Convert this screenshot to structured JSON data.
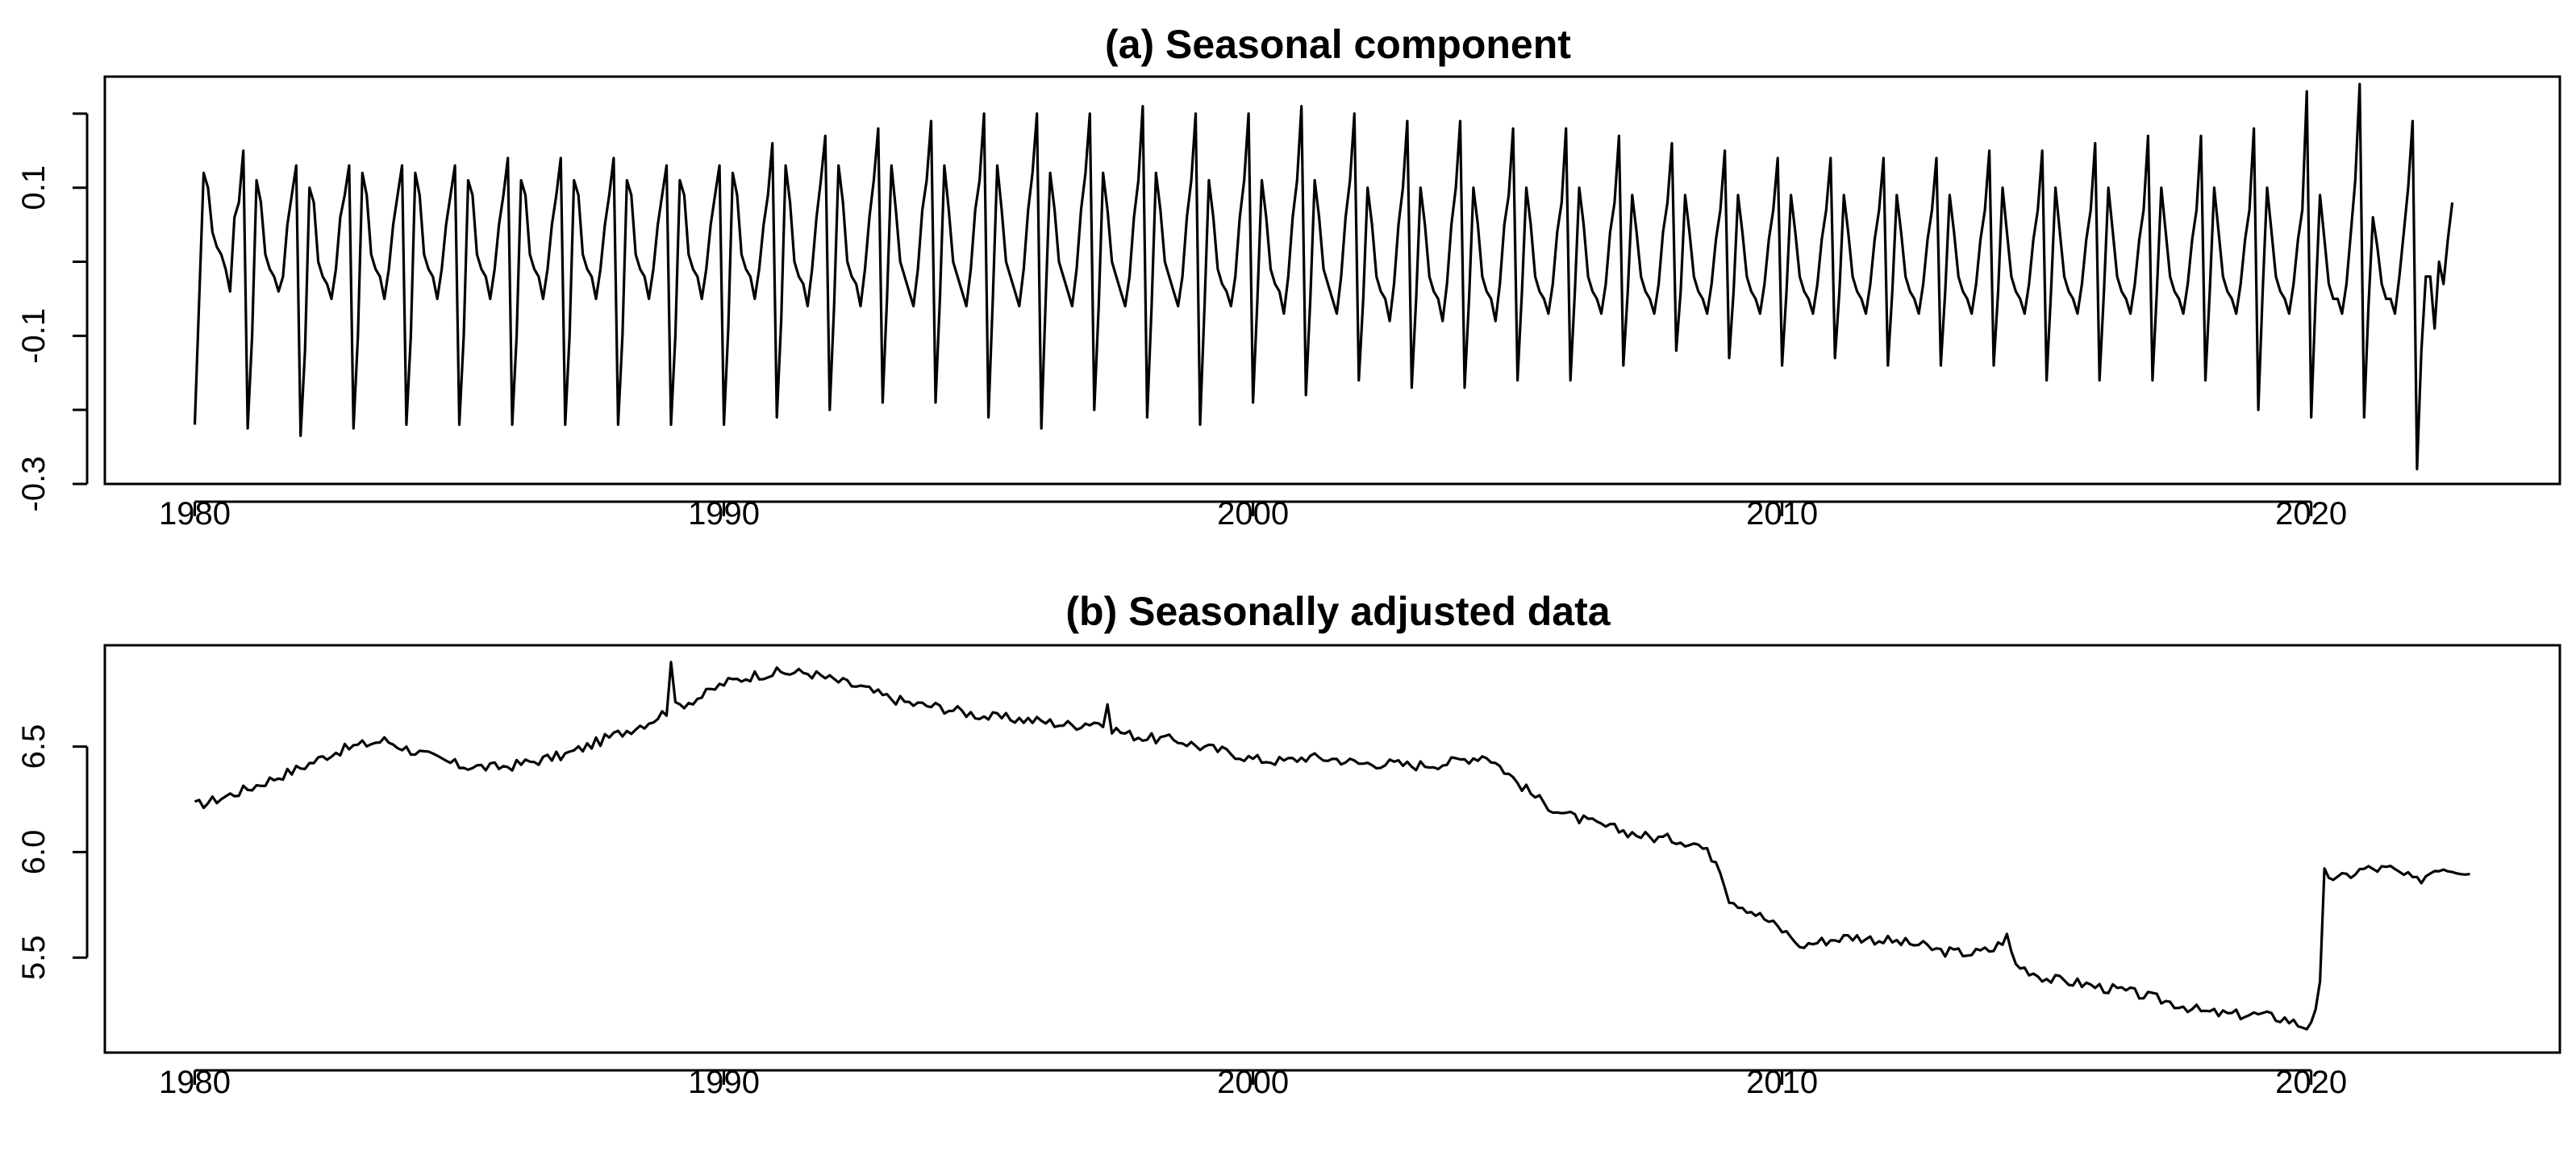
{
  "chart_data": [
    {
      "type": "line",
      "title": "(a) Seasonal component",
      "xlabel": "",
      "ylabel": "",
      "xlim": [
        1978.3,
        2024.7
      ],
      "ylim": [
        -0.3,
        0.25
      ],
      "x_ticks": [
        1980,
        1990,
        2000,
        2010,
        2020
      ],
      "x_tick_labels": [
        "1980",
        "1990",
        "2000",
        "2010",
        "2020"
      ],
      "y_ticks": [
        -0.3,
        -0.1,
        0.1
      ],
      "y_tick_labels": [
        "-0.3",
        "-0.1",
        "0.1"
      ],
      "y_minor_ticks": [
        -0.2,
        0.0,
        0.2
      ],
      "grid": false,
      "frequency": 12,
      "start": 1980,
      "series": [
        {
          "name": "Seasonal component",
          "values": [
            -0.22,
            -0.05,
            0.12,
            0.1,
            0.04,
            0.02,
            0.01,
            -0.01,
            -0.04,
            0.06,
            0.08,
            0.15,
            -0.225,
            -0.1,
            0.11,
            0.08,
            0.01,
            -0.01,
            -0.02,
            -0.04,
            -0.02,
            0.05,
            0.09,
            0.13,
            -0.235,
            -0.12,
            0.1,
            0.08,
            0.0,
            -0.02,
            -0.03,
            -0.05,
            -0.01,
            0.06,
            0.09,
            0.13,
            -0.225,
            -0.1,
            0.12,
            0.09,
            0.01,
            -0.01,
            -0.02,
            -0.05,
            -0.01,
            0.05,
            0.09,
            0.13,
            -0.22,
            -0.1,
            0.12,
            0.09,
            0.01,
            -0.01,
            -0.02,
            -0.05,
            -0.01,
            0.05,
            0.09,
            0.13,
            -0.22,
            -0.1,
            0.11,
            0.09,
            0.01,
            -0.01,
            -0.02,
            -0.05,
            -0.01,
            0.05,
            0.09,
            0.14,
            -0.22,
            -0.1,
            0.11,
            0.09,
            0.01,
            -0.01,
            -0.02,
            -0.05,
            -0.01,
            0.05,
            0.09,
            0.14,
            -0.22,
            -0.1,
            0.11,
            0.09,
            0.01,
            -0.01,
            -0.02,
            -0.05,
            -0.01,
            0.05,
            0.09,
            0.14,
            -0.22,
            -0.1,
            0.11,
            0.09,
            0.01,
            -0.01,
            -0.02,
            -0.05,
            -0.01,
            0.05,
            0.09,
            0.13,
            -0.22,
            -0.1,
            0.11,
            0.09,
            0.01,
            -0.01,
            -0.02,
            -0.05,
            -0.01,
            0.05,
            0.09,
            0.13,
            -0.22,
            -0.09,
            0.12,
            0.09,
            0.01,
            -0.01,
            -0.02,
            -0.05,
            -0.01,
            0.05,
            0.09,
            0.16,
            -0.21,
            -0.08,
            0.13,
            0.08,
            0.0,
            -0.02,
            -0.03,
            -0.06,
            -0.01,
            0.06,
            0.11,
            0.17,
            -0.2,
            -0.06,
            0.13,
            0.08,
            0.0,
            -0.02,
            -0.03,
            -0.06,
            -0.01,
            0.06,
            0.11,
            0.18,
            -0.19,
            -0.05,
            0.13,
            0.07,
            0.0,
            -0.02,
            -0.04,
            -0.06,
            -0.01,
            0.07,
            0.11,
            0.19,
            -0.19,
            -0.05,
            0.13,
            0.07,
            0.0,
            -0.02,
            -0.04,
            -0.06,
            -0.01,
            0.07,
            0.11,
            0.2,
            -0.21,
            -0.05,
            0.13,
            0.07,
            0.0,
            -0.02,
            -0.04,
            -0.06,
            -0.01,
            0.07,
            0.12,
            0.2,
            -0.225,
            -0.05,
            0.12,
            0.07,
            0.0,
            -0.02,
            -0.04,
            -0.06,
            -0.01,
            0.07,
            0.12,
            0.2,
            -0.2,
            -0.06,
            0.12,
            0.07,
            0.0,
            -0.02,
            -0.04,
            -0.06,
            -0.02,
            0.06,
            0.11,
            0.21,
            -0.21,
            -0.06,
            0.12,
            0.07,
            0.0,
            -0.02,
            -0.04,
            -0.06,
            -0.02,
            0.06,
            0.11,
            0.2,
            -0.22,
            -0.06,
            0.11,
            0.06,
            -0.01,
            -0.03,
            -0.04,
            -0.06,
            -0.02,
            0.06,
            0.11,
            0.2,
            -0.19,
            -0.05,
            0.11,
            0.06,
            -0.01,
            -0.03,
            -0.04,
            -0.07,
            -0.02,
            0.06,
            0.11,
            0.21,
            -0.18,
            -0.05,
            0.11,
            0.06,
            -0.01,
            -0.03,
            -0.05,
            -0.07,
            -0.02,
            0.06,
            0.11,
            0.2,
            -0.16,
            -0.05,
            0.1,
            0.05,
            -0.02,
            -0.04,
            -0.05,
            -0.08,
            -0.03,
            0.05,
            0.1,
            0.19,
            -0.17,
            -0.05,
            0.1,
            0.05,
            -0.02,
            -0.04,
            -0.05,
            -0.08,
            -0.03,
            0.05,
            0.1,
            0.19,
            -0.17,
            -0.05,
            0.1,
            0.05,
            -0.02,
            -0.04,
            -0.05,
            -0.08,
            -0.03,
            0.05,
            0.09,
            0.18,
            -0.16,
            -0.04,
            0.1,
            0.05,
            -0.02,
            -0.04,
            -0.05,
            -0.07,
            -0.03,
            0.04,
            0.08,
            0.18,
            -0.16,
            -0.04,
            0.1,
            0.05,
            -0.02,
            -0.04,
            -0.05,
            -0.07,
            -0.03,
            0.04,
            0.08,
            0.17,
            -0.14,
            -0.04,
            0.09,
            0.04,
            -0.02,
            -0.04,
            -0.05,
            -0.07,
            -0.03,
            0.04,
            0.08,
            0.16,
            -0.12,
            -0.04,
            0.09,
            0.04,
            -0.02,
            -0.04,
            -0.05,
            -0.07,
            -0.03,
            0.03,
            0.07,
            0.15,
            -0.13,
            -0.04,
            0.09,
            0.04,
            -0.02,
            -0.04,
            -0.05,
            -0.07,
            -0.03,
            0.03,
            0.07,
            0.14,
            -0.14,
            -0.04,
            0.09,
            0.04,
            -0.02,
            -0.04,
            -0.05,
            -0.07,
            -0.03,
            0.03,
            0.07,
            0.14,
            -0.13,
            -0.04,
            0.09,
            0.04,
            -0.02,
            -0.04,
            -0.05,
            -0.07,
            -0.03,
            0.03,
            0.07,
            0.14,
            -0.14,
            -0.04,
            0.09,
            0.04,
            -0.02,
            -0.04,
            -0.05,
            -0.07,
            -0.03,
            0.03,
            0.07,
            0.14,
            -0.14,
            -0.04,
            0.09,
            0.04,
            -0.02,
            -0.04,
            -0.05,
            -0.07,
            -0.03,
            0.03,
            0.07,
            0.15,
            -0.14,
            -0.04,
            0.1,
            0.04,
            -0.02,
            -0.04,
            -0.05,
            -0.07,
            -0.03,
            0.03,
            0.07,
            0.15,
            -0.16,
            -0.04,
            0.1,
            0.04,
            -0.02,
            -0.04,
            -0.05,
            -0.07,
            -0.03,
            0.03,
            0.07,
            0.16,
            -0.16,
            -0.04,
            0.1,
            0.04,
            -0.02,
            -0.04,
            -0.05,
            -0.07,
            -0.03,
            0.03,
            0.07,
            0.17,
            -0.16,
            -0.04,
            0.1,
            0.04,
            -0.02,
            -0.04,
            -0.05,
            -0.07,
            -0.03,
            0.03,
            0.07,
            0.17,
            -0.16,
            -0.04,
            0.1,
            0.04,
            -0.02,
            -0.04,
            -0.05,
            -0.07,
            -0.03,
            0.03,
            0.07,
            0.18,
            -0.2,
            -0.04,
            0.1,
            0.04,
            -0.02,
            -0.04,
            -0.05,
            -0.07,
            -0.03,
            0.03,
            0.07,
            0.23,
            -0.21,
            -0.05,
            0.09,
            0.03,
            -0.03,
            -0.05,
            -0.05,
            -0.07,
            -0.03,
            0.04,
            0.11,
            0.24,
            -0.21,
            -0.06,
            0.06,
            0.02,
            -0.03,
            -0.05,
            -0.05,
            -0.07,
            -0.02,
            0.04,
            0.1,
            0.19,
            -0.28,
            -0.12,
            -0.02,
            -0.02,
            -0.09,
            0.0,
            -0.03,
            0.03,
            0.08
          ]
        }
      ]
    },
    {
      "type": "line",
      "title": "(b) Seasonally adjusted data",
      "xlabel": "",
      "ylabel": "",
      "xlim": [
        1978.3,
        2024.7
      ],
      "ylim": [
        5.05,
        6.98
      ],
      "x_ticks": [
        1980,
        1990,
        2000,
        2010,
        2020
      ],
      "x_tick_labels": [
        "1980",
        "1990",
        "2000",
        "2010",
        "2020"
      ],
      "y_ticks": [
        5.5,
        6.0,
        6.5
      ],
      "y_tick_labels": [
        "5.5",
        "6.0",
        "6.5"
      ],
      "grid": false,
      "frequency": 12,
      "start": 1980,
      "series": [
        {
          "name": "Seasonally adjusted data",
          "anchors": [
            [
              1980.0,
              6.22
            ],
            [
              1980.3,
              6.24
            ],
            [
              1981.0,
              6.3
            ],
            [
              1981.6,
              6.36
            ],
            [
              1982.0,
              6.4
            ],
            [
              1982.6,
              6.47
            ],
            [
              1983.0,
              6.5
            ],
            [
              1983.6,
              6.53
            ],
            [
              1984.0,
              6.49
            ],
            [
              1984.6,
              6.44
            ],
            [
              1985.0,
              6.41
            ],
            [
              1985.6,
              6.4
            ],
            [
              1986.0,
              6.41
            ],
            [
              1986.6,
              6.44
            ],
            [
              1987.0,
              6.46
            ],
            [
              1987.6,
              6.52
            ],
            [
              1988.0,
              6.56
            ],
            [
              1988.6,
              6.62
            ],
            [
              1989.0,
              6.68
            ],
            [
              1989.6,
              6.74
            ],
            [
              1990.0,
              6.8
            ],
            [
              1990.6,
              6.84
            ],
            [
              1991.0,
              6.85
            ],
            [
              1991.6,
              6.85
            ],
            [
              1992.0,
              6.82
            ],
            [
              1992.6,
              6.78
            ],
            [
              1993.0,
              6.74
            ],
            [
              1993.6,
              6.7
            ],
            [
              1994.0,
              6.69
            ],
            [
              1994.6,
              6.66
            ],
            [
              1995.0,
              6.64
            ],
            [
              1995.6,
              6.63
            ],
            [
              1996.0,
              6.62
            ],
            [
              1996.6,
              6.6
            ],
            [
              1997.0,
              6.62
            ],
            [
              1997.6,
              6.56
            ],
            [
              1998.0,
              6.54
            ],
            [
              1998.6,
              6.53
            ],
            [
              1999.0,
              6.5
            ],
            [
              1999.6,
              6.47
            ],
            [
              2000.0,
              6.44
            ],
            [
              2000.6,
              6.43
            ],
            [
              2001.0,
              6.45
            ],
            [
              2001.6,
              6.44
            ],
            [
              2002.0,
              6.42
            ],
            [
              2002.6,
              6.42
            ],
            [
              2003.0,
              6.41
            ],
            [
              2003.6,
              6.42
            ],
            [
              2004.0,
              6.44
            ],
            [
              2004.4,
              6.46
            ],
            [
              2004.7,
              6.4
            ],
            [
              2005.0,
              6.33
            ],
            [
              2005.5,
              6.23
            ],
            [
              2006.0,
              6.17
            ],
            [
              2006.5,
              6.13
            ],
            [
              2007.0,
              6.1
            ],
            [
              2007.5,
              6.07
            ],
            [
              2008.0,
              6.06
            ],
            [
              2008.4,
              6.04
            ],
            [
              2008.8,
              5.95
            ],
            [
              2009.0,
              5.78
            ],
            [
              2009.3,
              5.74
            ],
            [
              2009.7,
              5.68
            ],
            [
              2010.0,
              5.63
            ],
            [
              2010.4,
              5.56
            ],
            [
              2010.8,
              5.58
            ],
            [
              2011.3,
              5.6
            ],
            [
              2012.0,
              5.58
            ],
            [
              2012.6,
              5.56
            ],
            [
              2013.0,
              5.53
            ],
            [
              2013.6,
              5.52
            ],
            [
              2014.0,
              5.54
            ],
            [
              2014.25,
              5.6
            ],
            [
              2014.4,
              5.47
            ],
            [
              2015.0,
              5.4
            ],
            [
              2015.6,
              5.38
            ],
            [
              2016.0,
              5.36
            ],
            [
              2016.5,
              5.34
            ],
            [
              2017.0,
              5.31
            ],
            [
              2017.6,
              5.27
            ],
            [
              2018.0,
              5.24
            ],
            [
              2018.5,
              5.23
            ],
            [
              2019.0,
              5.23
            ],
            [
              2019.5,
              5.21
            ],
            [
              2019.9,
              5.17
            ],
            [
              2020.15,
              5.26
            ],
            [
              2020.25,
              5.9
            ],
            [
              2020.5,
              5.87
            ],
            [
              2021.0,
              5.92
            ],
            [
              2021.5,
              5.92
            ],
            [
              2022.0,
              5.86
            ],
            [
              2022.4,
              5.93
            ],
            [
              2022.7,
              5.92
            ],
            [
              2023.0,
              5.91
            ]
          ],
          "spikes": [
            [
              1989.0,
              6.9
            ],
            [
              1997.25,
              6.7
            ],
            [
              2010.3,
              5.55
            ]
          ],
          "noise_amplitude": 0.025
        }
      ]
    }
  ]
}
